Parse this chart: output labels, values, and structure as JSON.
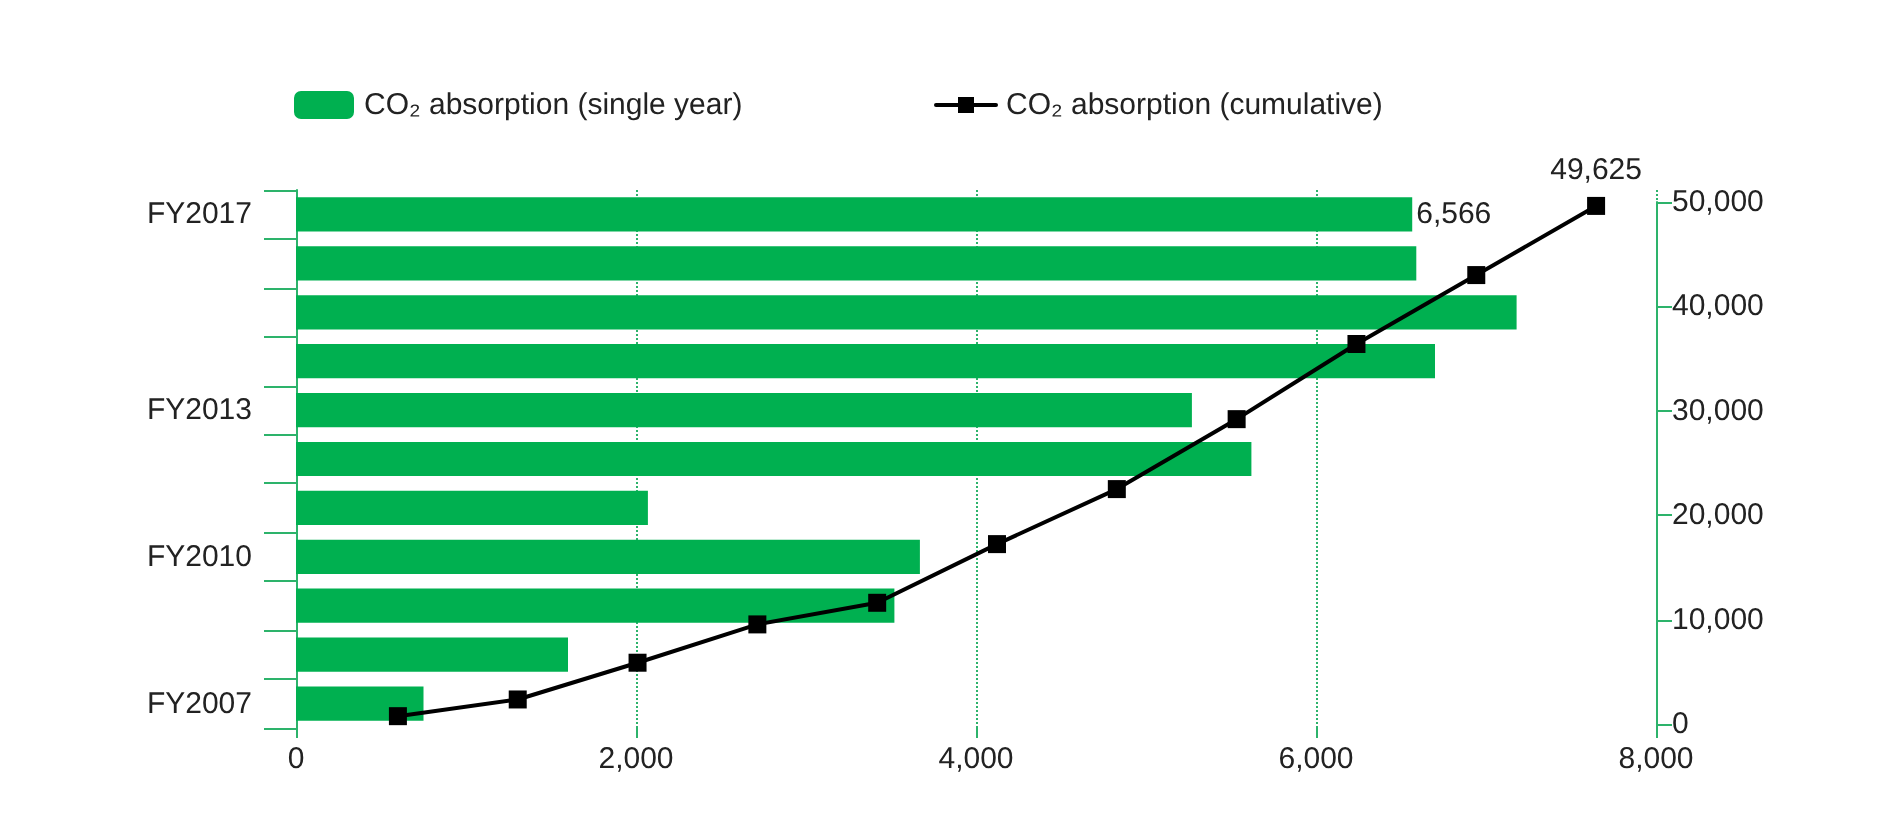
{
  "chart_data": [
    {
      "type": "bar",
      "orientation": "horizontal",
      "categories": [
        "FY2017",
        null,
        null,
        null,
        "FY2013",
        null,
        null,
        "FY2010",
        null,
        null,
        "FY2007"
      ],
      "series": [
        {
          "name": "CO₂ absorption (single year)",
          "color": "#00b050",
          "values": [
            6566,
            6590,
            7180,
            6700,
            5270,
            5620,
            2070,
            3670,
            3520,
            1600,
            750
          ],
          "value_labels": [
            "6,566",
            null,
            null,
            null,
            null,
            null,
            null,
            null,
            null,
            null,
            null
          ]
        }
      ],
      "xlim": [
        0,
        8000
      ],
      "xticks": [
        0,
        {
          "value": 2000,
          "label": "2,000"
        },
        {
          "value": 4000,
          "label": "4,000"
        },
        {
          "value": 6000,
          "label": "6,000"
        },
        {
          "value": 8000,
          "label": "8,000"
        }
      ],
      "grid": "x",
      "legend": "top"
    },
    {
      "type": "line",
      "categories": [
        null,
        null,
        null,
        null,
        null,
        null,
        null,
        null,
        null,
        null,
        null
      ],
      "series": [
        {
          "name": "CO₂ absorption (cumulative)",
          "color": "#000000",
          "values": [
            750,
            2350,
            5870,
            9540,
            11610,
            17230,
            22500,
            29200,
            36400,
            43000,
            49625
          ],
          "value_labels": [
            null,
            null,
            null,
            null,
            null,
            null,
            null,
            null,
            null,
            null,
            "49,625"
          ]
        }
      ],
      "ylim": [
        0,
        50000
      ],
      "yticks": [
        0,
        {
          "value": 10000,
          "label": "10,000"
        },
        {
          "value": 20000,
          "label": "20,000"
        },
        {
          "value": 30000,
          "label": "30,000"
        },
        {
          "value": 40000,
          "label": "40,000"
        },
        {
          "value": 50000,
          "label": "50,000"
        }
      ],
      "tick_labels": "y",
      "marker": "square",
      "line_style": "solid",
      "legend": "top"
    }
  ]
}
